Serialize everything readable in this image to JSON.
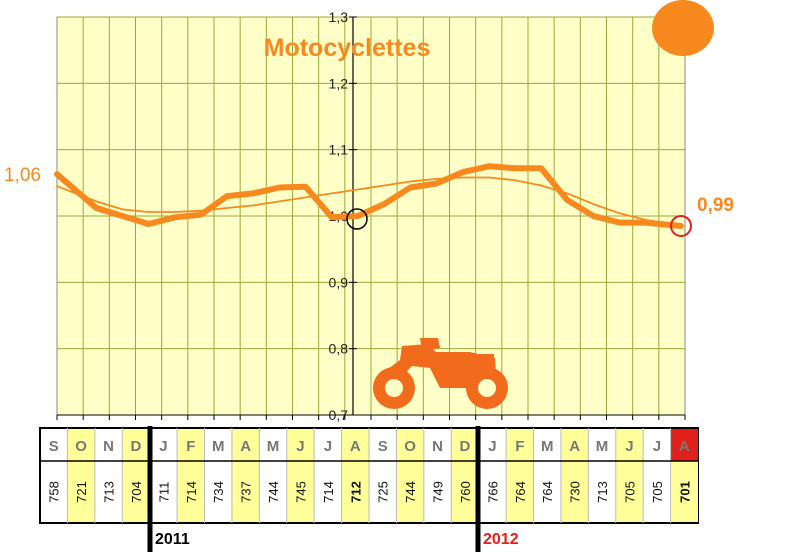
{
  "chart_data": {
    "type": "line",
    "title": "Motocyclettes",
    "y_ticks": [
      "0,7",
      "0,8",
      "0,9",
      "1,0",
      "1,1",
      "1,2",
      "1,3"
    ],
    "ylim": [
      0.7,
      1.3
    ],
    "grid": true,
    "months": [
      "S",
      "O",
      "N",
      "D",
      "J",
      "F",
      "M",
      "A",
      "M",
      "J",
      "J",
      "A",
      "S",
      "O",
      "N",
      "D",
      "J",
      "F",
      "M",
      "A",
      "M",
      "J",
      "J",
      "A"
    ],
    "counts": [
      "758",
      "721",
      "713",
      "704",
      "711",
      "714",
      "734",
      "737",
      "744",
      "745",
      "714",
      "712",
      "725",
      "744",
      "749",
      "760",
      "766",
      "764",
      "764",
      "730",
      "713",
      "705",
      "705",
      "701"
    ],
    "series": [
      {
        "values": [
          1.063,
          1.012,
          1.0,
          0.988,
          0.998,
          1.002,
          1.03,
          1.034,
          1.043,
          1.044,
          0.998,
          1.0,
          1.018,
          1.043,
          1.049,
          1.066,
          1.075,
          1.072,
          1.072,
          1.024,
          1.0,
          0.99,
          0.99,
          0.985
        ]
      },
      {
        "values": [
          1.045,
          1.022,
          1.01,
          1.006,
          1.006,
          1.008,
          1.012,
          1.016,
          1.022,
          1.028,
          1.034,
          1.04,
          1.046,
          1.052,
          1.056,
          1.058,
          1.058,
          1.054,
          1.046,
          1.034,
          1.018,
          1.004,
          0.994,
          0.986
        ]
      }
    ],
    "start_label": "1,06",
    "end_label": "0,99",
    "years": [
      "2011",
      "2012"
    ],
    "colors": {
      "line": "#f7891e",
      "plot_bg": "#ffffc8",
      "grid": "#9aaa3a",
      "highlight": "#ffff99",
      "red": "#e0201c"
    }
  }
}
